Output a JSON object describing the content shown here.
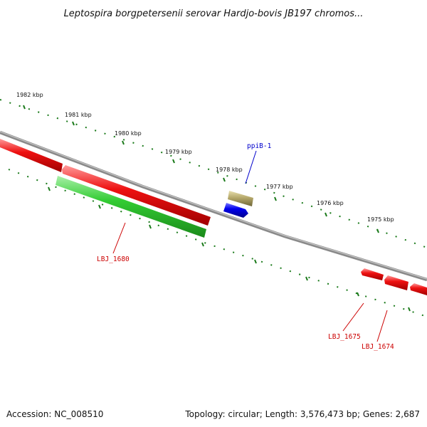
{
  "title": "Leptospira borgpetersenii serovar Hardjo-bovis JB197 chromos...",
  "footer": {
    "accession": "Accession: NC_008510",
    "summary": "Topology: circular; Length: 3,576,473 bp; Genes: 2,687"
  },
  "colors": {
    "forward_gene": "#ee1111",
    "reverse_gene": "#33cc33",
    "rna_gene": "#0000dd",
    "other_feature": "#b5a86a",
    "backbone": "#888888",
    "ticks": "#1a7a1a",
    "gene_label": "#cc0000",
    "feature_label": "#0000cc"
  },
  "scale": {
    "labels": [
      "1982 kbp",
      "1981 kbp",
      "1980 kbp",
      "1979 kbp",
      "1978 kbp",
      "1977 kbp",
      "1976 kbp",
      "1975 kbp"
    ]
  },
  "gene_labels": {
    "ppiB": "ppiB-1",
    "lbj1680": "LBJ_1680",
    "lbj1675": "LBJ_1675",
    "lbj1674": "LBJ_1674"
  }
}
